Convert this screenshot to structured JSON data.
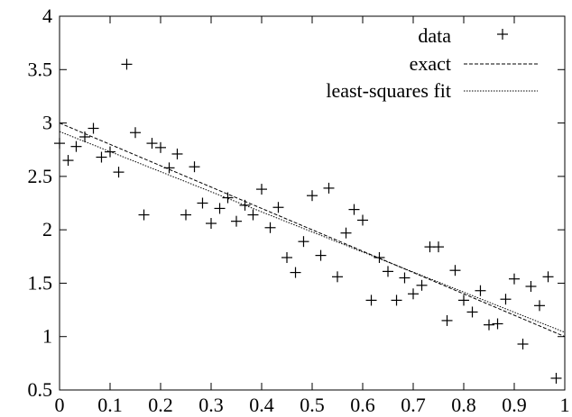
{
  "chart_data": {
    "type": "scatter",
    "title": "",
    "xlabel": "",
    "ylabel": "",
    "xlim": [
      0,
      1
    ],
    "ylim": [
      0.5,
      4
    ],
    "grid": false,
    "legend_position": "top-right",
    "x_ticks": [
      {
        "value": 0,
        "label": "0"
      },
      {
        "value": 0.1,
        "label": "0.1"
      },
      {
        "value": 0.2,
        "label": "0.2"
      },
      {
        "value": 0.3,
        "label": "0.3"
      },
      {
        "value": 0.4,
        "label": "0.4"
      },
      {
        "value": 0.5,
        "label": "0.5"
      },
      {
        "value": 0.6,
        "label": "0.6"
      },
      {
        "value": 0.7,
        "label": "0.7"
      },
      {
        "value": 0.8,
        "label": "0.8"
      },
      {
        "value": 0.9,
        "label": "0.9"
      },
      {
        "value": 1,
        "label": "1"
      }
    ],
    "y_ticks": [
      {
        "value": 0.5,
        "label": "0.5"
      },
      {
        "value": 1,
        "label": "1"
      },
      {
        "value": 1.5,
        "label": "1.5"
      },
      {
        "value": 2,
        "label": "2"
      },
      {
        "value": 2.5,
        "label": "2.5"
      },
      {
        "value": 3,
        "label": "3"
      },
      {
        "value": 3.5,
        "label": "3.5"
      },
      {
        "value": 4,
        "label": "4"
      }
    ],
    "series": [
      {
        "name": "data",
        "style": "points",
        "x": [
          0.0,
          0.017,
          0.033,
          0.05,
          0.067,
          0.083,
          0.1,
          0.117,
          0.133,
          0.15,
          0.167,
          0.183,
          0.2,
          0.217,
          0.233,
          0.25,
          0.267,
          0.283,
          0.3,
          0.317,
          0.333,
          0.35,
          0.367,
          0.383,
          0.4,
          0.417,
          0.433,
          0.45,
          0.467,
          0.483,
          0.5,
          0.517,
          0.533,
          0.55,
          0.567,
          0.583,
          0.6,
          0.617,
          0.633,
          0.65,
          0.667,
          0.683,
          0.7,
          0.717,
          0.733,
          0.75,
          0.767,
          0.783,
          0.8,
          0.817,
          0.833,
          0.85,
          0.867,
          0.883,
          0.9,
          0.917,
          0.933,
          0.95,
          0.967,
          0.983
        ],
        "y": [
          2.81,
          2.65,
          2.78,
          2.87,
          2.95,
          2.68,
          2.73,
          2.54,
          3.55,
          2.91,
          2.14,
          2.81,
          2.77,
          2.58,
          2.71,
          2.14,
          2.59,
          2.25,
          2.06,
          2.2,
          2.3,
          2.08,
          2.23,
          2.14,
          2.38,
          2.02,
          2.21,
          1.74,
          1.6,
          1.89,
          2.32,
          1.76,
          2.39,
          1.56,
          1.97,
          2.19,
          2.09,
          1.34,
          1.74,
          1.61,
          1.34,
          1.55,
          1.4,
          1.48,
          1.84,
          1.84,
          1.15,
          1.62,
          1.34,
          1.23,
          1.43,
          1.11,
          1.12,
          1.35,
          1.54,
          0.93,
          1.47,
          1.29,
          1.56,
          0.61
        ]
      },
      {
        "name": "exact",
        "style": "dashed",
        "x": [
          0,
          1
        ],
        "y": [
          3.0,
          1.0
        ]
      },
      {
        "name": "least-squares fit",
        "style": "dotted",
        "x": [
          0,
          1
        ],
        "y": [
          2.92,
          1.04
        ]
      }
    ]
  }
}
